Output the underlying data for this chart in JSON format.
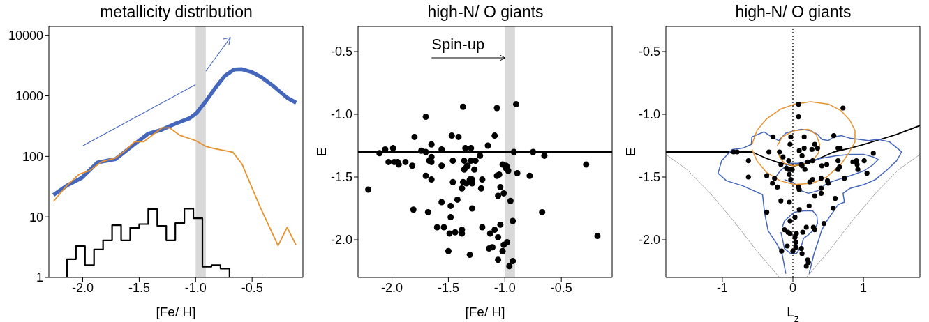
{
  "chart_data": [
    {
      "type": "line",
      "title": "metallicity distribution",
      "xlabel": "[Fe/ H]",
      "xlim": [
        -2.3,
        -0.05
      ],
      "xticks": [
        {
          "value": -2,
          "label": "-2.0"
        },
        {
          "value": -1.5,
          "label": "-1.5"
        },
        {
          "value": -1,
          "label": "-1.0"
        },
        {
          "value": -0.5,
          "label": "-0.5"
        }
      ],
      "ylim": [
        1,
        14000
      ],
      "yticks": [
        1,
        10,
        100,
        1000,
        10000
      ],
      "log": "y",
      "bands": [
        {
          "axis": "x",
          "from": -1.0,
          "to": -0.91,
          "color": "#d9d9d9"
        }
      ],
      "series": [
        {
          "color": "#4466bb",
          "x": [
            -2.26,
            -2.14,
            -2.01,
            -1.87,
            -1.8,
            -1.71,
            -1.54,
            -1.42,
            -1.3,
            -1.17,
            -1.05,
            -0.99,
            -0.91,
            -0.83,
            -0.74,
            -0.66,
            -0.59,
            -0.5,
            -0.42,
            -0.31,
            -0.19,
            -0.11
          ],
          "values": [
            23,
            33,
            44,
            79,
            84,
            90,
            160,
            237,
            276,
            353,
            429,
            525,
            814,
            1320,
            2150,
            2730,
            2750,
            2460,
            2050,
            1440,
            930,
            767
          ]
        },
        {
          "color": "#e8922e",
          "x": [
            -2.26,
            -2.14,
            -2.03,
            -1.94,
            -1.83,
            -1.71,
            -1.63,
            -1.54,
            -1.46,
            -1.38,
            -1.3,
            -1.23,
            -1.14,
            -1.0,
            -0.91,
            -0.83,
            -0.67,
            -0.59,
            -0.43,
            -0.27,
            -0.19,
            -0.11
          ],
          "values": [
            18,
            33,
            51,
            58,
            82,
            94,
            122,
            174,
            174,
            227,
            296,
            296,
            223,
            182,
            146,
            134,
            117,
            75,
            14.7,
            3.35,
            6.7,
            3.4
          ]
        },
        {
          "type": "histogram",
          "color": "#000000",
          "bins": [
            -2.14,
            -2.06,
            -1.98,
            -1.9,
            -1.82,
            -1.74,
            -1.66,
            -1.58,
            -1.5,
            -1.42,
            -1.34,
            -1.26,
            -1.18,
            -1.1,
            -1.02,
            -0.94,
            -0.86,
            -0.78,
            -0.7,
            -0.62,
            -0.54,
            -0.46,
            -0.38
          ],
          "values": [
            2,
            3.3,
            1.6,
            2.9,
            4.1,
            7.3,
            4.1,
            6.6,
            7.6,
            13.5,
            7.1,
            4.1,
            7.9,
            13.7,
            9.5,
            1.5,
            1.6,
            1.4,
            1,
            1,
            1,
            1
          ]
        }
      ]
    },
    {
      "type": "scatter",
      "title": "high-N/ O giants",
      "xlabel": "[Fe/ H]",
      "ylabel": "E",
      "xlim": [
        -2.3,
        -0.05
      ],
      "xticks": [
        {
          "value": -2,
          "label": "-2.0"
        },
        {
          "value": -1.5,
          "label": "-1.5"
        },
        {
          "value": -1,
          "label": "-1.0"
        },
        {
          "value": -0.5,
          "label": "-0.5"
        }
      ],
      "ylim": [
        -2.3,
        -0.3
      ],
      "yticks": [
        {
          "value": -2,
          "label": "-2.0"
        },
        {
          "value": -1.5,
          "label": "-1.5"
        },
        {
          "value": -1,
          "label": "-1.0"
        },
        {
          "value": -0.5,
          "label": "-0.5"
        }
      ],
      "marker": "circle",
      "bands": [
        {
          "axis": "x",
          "from": -1.0,
          "to": -0.91,
          "color": "#d9d9d9"
        }
      ],
      "ref_lines": [
        {
          "axis": "y",
          "value": -1.3,
          "color": "#000000"
        }
      ],
      "annotations": [
        {
          "text": "Spin-up",
          "x": -1.0,
          "y": -0.55
        }
      ],
      "series": [
        {
          "color": "#000000",
          "x": [
            -2.21,
            -2.11,
            -2.06,
            -1.99,
            -2.03,
            -1.98,
            -1.95,
            -1.94,
            -1.88,
            -1.82,
            -1.8,
            -1.81,
            -1.74,
            -1.7,
            -1.7,
            -1.67,
            -1.65,
            -1.65,
            -1.7,
            -1.65,
            -1.68,
            -1.65,
            -1.56,
            -1.56,
            -1.56,
            -1.6,
            -1.54,
            -1.49,
            -1.5,
            -1.48,
            -1.48,
            -1.47,
            -1.46,
            -1.46,
            -1.44,
            -1.41,
            -1.42,
            -1.38,
            -1.38,
            -1.38,
            -1.37,
            -1.37,
            -1.36,
            -1.36,
            -1.35,
            -1.34,
            -1.33,
            -1.34,
            -1.31,
            -1.3,
            -1.3,
            -1.29,
            -1.29,
            -1.29,
            -1.31,
            -1.27,
            -1.26,
            -1.22,
            -1.2,
            -1.21,
            -1.2,
            -1.15,
            -1.09,
            -1.07,
            -1.09,
            -1.13,
            -1.14,
            -1.11,
            -1.07,
            -1.05,
            -1.06,
            -1.04,
            -1.01,
            -1.04,
            -1.06,
            -1.06,
            -1.02,
            -1.01,
            -0.98,
            -1.02,
            -0.99,
            -0.98,
            -0.97,
            -0.99,
            -0.96,
            -0.93,
            -0.95,
            -0.93,
            -0.92,
            -0.9,
            -0.89,
            -0.78,
            -0.75,
            -0.65,
            -0.67,
            -0.28,
            -0.18
          ],
          "values": [
            -1.6,
            -1.31,
            -1.28,
            -1.27,
            -1.38,
            -1.38,
            -1.38,
            -1.4,
            -1.38,
            -1.41,
            -1.18,
            -1.76,
            -1.29,
            -1.02,
            -1.3,
            -1.37,
            -1.38,
            -1.34,
            -1.49,
            -1.52,
            -1.78,
            -1.24,
            -1.28,
            -1.41,
            -1.7,
            -1.9,
            -1.9,
            -1.95,
            -2.09,
            -1.73,
            -1.82,
            -1.17,
            -1.37,
            -1.54,
            -1.94,
            -1.18,
            -1.68,
            -1.92,
            -1.95,
            -1.59,
            -1.54,
            -0.94,
            -1.37,
            -1.44,
            -1.27,
            -1.42,
            -1.41,
            -1.55,
            -1.52,
            -1.27,
            -1.37,
            -1.52,
            -1.55,
            -1.75,
            -2.12,
            -1.44,
            -1.37,
            -1.33,
            -1.52,
            -1.59,
            -1.9,
            -1.25,
            -1.17,
            -0.95,
            -1.92,
            -1.95,
            -2.07,
            -2.06,
            -1.49,
            -1.48,
            -1.65,
            -1.58,
            -1.63,
            -1.88,
            -1.98,
            -2.16,
            -2.09,
            -2.04,
            -2.02,
            -1.4,
            -1.41,
            -1.42,
            -1.45,
            -1.43,
            -2.21,
            -2.17,
            -1.69,
            -1.85,
            -1.3,
            -0.92,
            -1.47,
            -1.49,
            -1.3,
            -1.33,
            -1.78,
            -1.4,
            -1.97
          ]
        }
      ]
    },
    {
      "type": "scatter",
      "title": "high-N/ O giants",
      "xlabel": "L$_{z}$",
      "ylabel": "E",
      "xlim": [
        -1.8,
        1.8
      ],
      "xticks": [
        -1,
        0,
        1
      ],
      "ylim": [
        -2.3,
        -0.3
      ],
      "yticks": [
        {
          "value": -2,
          "label": "-2.0"
        },
        {
          "value": -1.5,
          "label": "-1.5"
        },
        {
          "value": -1,
          "label": "-1.0"
        },
        {
          "value": -0.5,
          "label": "-0.5"
        }
      ],
      "marker": "circle",
      "ref_lines": [
        {
          "axis": "x",
          "value": 0,
          "color": "#000000",
          "line_style": "dotted"
        }
      ],
      "series": [
        {
          "color": "#000000",
          "x": [
            -0.84,
            -0.79,
            -0.63,
            -0.63,
            -0.34,
            -0.28,
            -0.19,
            -0.14,
            -0.17,
            -0.06,
            -0.06,
            -0.09,
            -0.03,
            -0.01,
            -0.05,
            -0.03,
            -0.37,
            -0.26,
            -0.29,
            -0.22,
            -0.17,
            -0.05,
            -0.37,
            -0.03,
            -0.04,
            0.08,
            0.08,
            0.09,
            0.13,
            0.16,
            0.16,
            0.27,
            0.31,
            0.35,
            0.21,
            0.13,
            0.17,
            0.28,
            0.12,
            0.24,
            0.28,
            0.08,
            0.09,
            0.31,
            0.4,
            0.4,
            0.4,
            0.41,
            0.48,
            0.49,
            0.5,
            0.58,
            0.64,
            0.67,
            0.64,
            0.64,
            0.66,
            0.73,
            0.6,
            0.57,
            0.71,
            0.85,
            0.9,
            0.91,
            0.92,
            1.01,
            1.05,
            1.14,
            0.09,
            0.23,
            0.44,
            0.03,
            -0.04,
            -0.12,
            -0.07,
            -0.04,
            0.05,
            0.03,
            0.14,
            0.19,
            0.29,
            0.31,
            0.04,
            0.04,
            0.0,
            -0.08,
            -0.16,
            0.12,
            0.13,
            0.21,
            0.22,
            0.19
          ],
          "values": [
            -1.3,
            -1.3,
            -1.37,
            -1.5,
            -1.3,
            -1.18,
            -1.3,
            -1.34,
            -1.4,
            -1.37,
            -1.44,
            -1.43,
            -1.44,
            -1.44,
            -1.48,
            -1.52,
            -1.49,
            -1.51,
            -1.55,
            -1.58,
            -1.69,
            -1.7,
            -1.78,
            -1.18,
            -1.24,
            -0.92,
            -1.02,
            -1.29,
            -1.33,
            -1.27,
            -1.18,
            -1.28,
            -1.24,
            -1.27,
            -1.38,
            -1.41,
            -1.44,
            -1.37,
            -1.4,
            -1.54,
            -1.52,
            -1.58,
            -1.6,
            -1.65,
            -1.51,
            -1.59,
            -1.63,
            -1.41,
            -1.4,
            -1.53,
            -1.55,
            -1.17,
            -1.27,
            -1.27,
            -1.37,
            -1.44,
            -1.42,
            -1.51,
            -1.67,
            -1.75,
            -0.95,
            -1.38,
            -1.37,
            -1.4,
            -1.44,
            -1.37,
            -1.47,
            -1.31,
            -1.76,
            -1.73,
            -1.87,
            -1.82,
            -1.85,
            -1.92,
            -1.94,
            -1.95,
            -1.95,
            -1.98,
            -1.94,
            -1.9,
            -1.9,
            -1.92,
            -2.02,
            -2.06,
            -2.09,
            -2.05,
            -2.09,
            -2.07,
            -2.11,
            -2.16,
            -2.18,
            -2.21
          ]
        },
        {
          "type": "line",
          "marker": "none",
          "color": "#000000",
          "x": [
            -1.8,
            -0.58,
            -0.38,
            -0.18,
            0.02,
            0.22,
            0.38,
            0.58,
            0.81,
            1.01,
            1.24,
            1.47,
            1.8
          ],
          "values": [
            -1.3,
            -1.3,
            -1.35,
            -1.39,
            -1.41,
            -1.39,
            -1.35,
            -1.3,
            -1.27,
            -1.24,
            -1.2,
            -1.16,
            -1.09
          ]
        },
        {
          "type": "line",
          "marker": "none",
          "color": "#aaaaaa",
          "x": [
            -1.8,
            -1.5,
            -1.17,
            -0.84,
            -0.51,
            -0.19
          ],
          "values": [
            -1.32,
            -1.44,
            -1.63,
            -1.85,
            -2.09,
            -2.3
          ]
        },
        {
          "type": "line",
          "marker": "none",
          "color": "#aaaaaa",
          "x": [
            0.19,
            0.51,
            0.84,
            1.17,
            1.5,
            1.8
          ],
          "values": [
            -2.3,
            -2.09,
            -1.85,
            -1.63,
            -1.44,
            -1.32
          ]
        },
        {
          "type": "line",
          "marker": "none",
          "color": "#4466bb",
          "x": [
            -0.1,
            -0.15,
            -0.23,
            -0.35,
            -0.4,
            -0.43,
            -0.71,
            -0.94,
            -1.06,
            -1.01,
            -0.86,
            -0.71,
            -0.59,
            -0.58,
            -0.41,
            -0.3,
            -0.2,
            -0.1,
            0.02,
            0.12,
            0.25,
            0.35,
            0.41,
            0.5,
            0.58,
            0.69,
            0.81,
            0.94,
            1.07,
            1.21,
            1.37,
            1.5,
            1.54,
            1.47,
            1.34,
            1.17,
            1.01,
            0.81,
            0.71,
            0.73,
            0.64,
            0.58,
            0.48,
            0.41,
            0.36,
            0.3,
            0.23
          ],
          "values": [
            -2.27,
            -2.12,
            -2.03,
            -1.93,
            -1.79,
            -1.64,
            -1.57,
            -1.53,
            -1.47,
            -1.37,
            -1.28,
            -1.27,
            -1.24,
            -1.18,
            -1.14,
            -1.18,
            -1.21,
            -1.15,
            -1.13,
            -1.12,
            -1.13,
            -1.16,
            -1.2,
            -1.21,
            -1.18,
            -1.17,
            -1.19,
            -1.2,
            -1.21,
            -1.2,
            -1.22,
            -1.28,
            -1.3,
            -1.37,
            -1.44,
            -1.52,
            -1.56,
            -1.59,
            -1.63,
            -1.7,
            -1.72,
            -1.77,
            -1.85,
            -1.92,
            -2.01,
            -2.11,
            -2.27
          ]
        },
        {
          "type": "line",
          "marker": "none",
          "color": "#4466bb",
          "x": [
            -0.23,
            -0.18,
            -0.05,
            0.08,
            0.25,
            0.41,
            0.61,
            0.81,
            1.01,
            1.14,
            1.21,
            1.14,
            1.01,
            0.81,
            0.64,
            0.48,
            0.35,
            0.22,
            0.12,
            0.02,
            -0.12
          ],
          "values": [
            -1.49,
            -1.45,
            -1.39,
            -1.39,
            -1.37,
            -1.35,
            -1.33,
            -1.32,
            -1.32,
            -1.34,
            -1.36,
            -1.4,
            -1.45,
            -1.49,
            -1.52,
            -1.55,
            -1.61,
            -1.63,
            -1.61,
            -1.55,
            -1.52
          ]
        },
        {
          "type": "line",
          "marker": "none",
          "color": "#4466bb",
          "x": [
            -0.15,
            -0.12,
            0.02,
            0.15,
            0.28,
            0.34,
            0.35,
            0.3,
            0.22,
            0.15,
            0.12,
            0.05,
            -0.03,
            -0.12,
            -0.15,
            -0.17
          ],
          "values": [
            -1.9,
            -1.85,
            -1.78,
            -1.77,
            -1.77,
            -1.81,
            -1.87,
            -1.92,
            -1.96,
            -1.99,
            -2.05,
            -2.11,
            -2.11,
            -2.07,
            -1.99,
            -1.94
          ]
        },
        {
          "type": "line",
          "marker": "none",
          "color": "#e8922e",
          "x": [
            -0.58,
            -0.51,
            -0.38,
            -0.18,
            0.02,
            0.25,
            0.51,
            0.68,
            0.81,
            0.88,
            0.88,
            0.79,
            0.68,
            0.48,
            0.28,
            0.02,
            -0.18,
            -0.38,
            -0.51,
            -0.58
          ],
          "values": [
            -1.24,
            -1.13,
            -1.04,
            -0.96,
            -0.92,
            -0.9,
            -0.92,
            -0.97,
            -1.05,
            -1.13,
            -1.22,
            -1.31,
            -1.4,
            -1.5,
            -1.55,
            -1.56,
            -1.53,
            -1.46,
            -1.37,
            -1.28
          ]
        },
        {
          "type": "line",
          "marker": "none",
          "color": "#e8922e",
          "x": [
            -0.22,
            -0.15,
            0.02,
            0.22,
            0.33,
            0.38,
            0.36,
            0.28,
            0.15,
            0.0,
            -0.12,
            -0.18,
            -0.22
          ],
          "values": [
            -1.25,
            -1.18,
            -1.13,
            -1.12,
            -1.16,
            -1.24,
            -1.31,
            -1.37,
            -1.4,
            -1.41,
            -1.39,
            -1.35,
            -1.29
          ]
        }
      ]
    }
  ]
}
